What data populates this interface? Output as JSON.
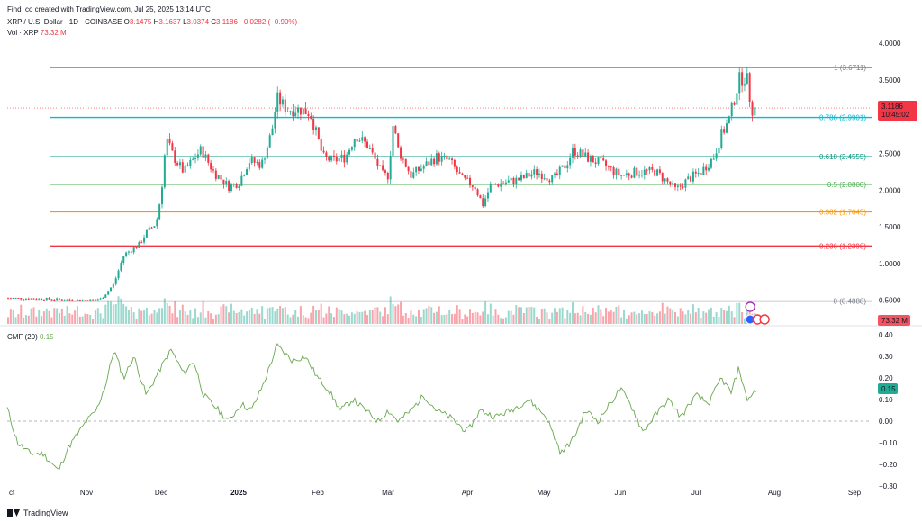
{
  "header": {
    "created_by": "Find_co created with TradingView.com, Jul 25, 2025 13:14 UTC",
    "symbol": "XRP / U.S. Dollar · 1D · COINBASE",
    "o_label": "O",
    "o_value": "3.1475",
    "h_label": "H",
    "h_value": "3.1637",
    "l_label": "L",
    "l_value": "3.0374",
    "c_label": "C",
    "c_value": "3.1186",
    "change": "−0.0282 (−0.90%)",
    "volume_label": "Vol · XRP",
    "volume_value": "73.32 M"
  },
  "indicator": {
    "label": "CMF (20)",
    "value": "0.15"
  },
  "footer": {
    "brand": "TradingView"
  },
  "colors": {
    "up": "#22ab94",
    "down": "#f23645",
    "cmf": "#6aa84f"
  },
  "chart_data": [
    {
      "type": "candlestick",
      "series_name": "XRP / U.S. Dollar",
      "y_ticks": [
        "4.0000",
        "3.5000",
        "3.0000",
        "2.5000",
        "2.0000",
        "1.5000",
        "1.0000",
        "0.5000"
      ],
      "ylim": [
        0.3,
        4.1
      ],
      "x_ticks": [
        "ct",
        "Nov",
        "Dec",
        "2025",
        "Feb",
        "Mar",
        "Apr",
        "May",
        "Jun",
        "Jul",
        "Aug",
        "Sep"
      ],
      "last_price": "3.1186",
      "countdown": "10:45:02",
      "fib_levels": [
        {
          "label": "1 (3.6711)",
          "value": 3.6711,
          "color": "#787b86"
        },
        {
          "label": "0.786 (2.9901)",
          "value": 2.9901,
          "color": "#00bcd4"
        },
        {
          "label": "0.618 (2.4555)",
          "value": 2.4555,
          "color": "#089981"
        },
        {
          "label": "0.5 (2.0800)",
          "value": 2.08,
          "color": "#4caf50"
        },
        {
          "label": "0.382 (1.7045)",
          "value": 1.7045,
          "color": "#ff9800"
        },
        {
          "label": "0.236 (1.2398)",
          "value": 1.2398,
          "color": "#f23645"
        },
        {
          "label": "0 (0.4888)",
          "value": 0.4888,
          "color": "#787b86"
        }
      ],
      "anchors": [
        [
          "Oct",
          0.53
        ],
        [
          "Oct 15",
          0.52
        ],
        [
          "Nov 1",
          0.5
        ],
        [
          "Nov 7",
          0.52
        ],
        [
          "Nov 12",
          0.72
        ],
        [
          "Nov 16",
          1.12
        ],
        [
          "Nov 22",
          1.25
        ],
        [
          "Nov 25",
          1.42
        ],
        [
          "Nov 29",
          1.55
        ],
        [
          "Dec 1",
          1.95
        ],
        [
          "Dec 3",
          2.7
        ],
        [
          "Dec 6",
          2.45
        ],
        [
          "Dec 10",
          2.25
        ],
        [
          "Dec 17",
          2.55
        ],
        [
          "Dec 22",
          2.25
        ],
        [
          "Dec 28",
          2.05
        ],
        [
          "Jan 1",
          2.1
        ],
        [
          "Jan 5",
          2.4
        ],
        [
          "Jan 10",
          2.35
        ],
        [
          "Jan 14",
          2.8
        ],
        [
          "Jan 16",
          3.25
        ],
        [
          "Jan 20",
          3.1
        ],
        [
          "Jan 25",
          3.1
        ],
        [
          "Jan 29",
          3.05
        ],
        [
          "Feb 1",
          2.7
        ],
        [
          "Feb 3",
          2.45
        ],
        [
          "Feb 7",
          2.4
        ],
        [
          "Feb 12",
          2.45
        ],
        [
          "Feb 16",
          2.75
        ],
        [
          "Feb 21",
          2.6
        ],
        [
          "Feb 27",
          2.2
        ],
        [
          "Mar 1",
          2.2
        ],
        [
          "Mar 3",
          2.9
        ],
        [
          "Mar 5",
          2.55
        ],
        [
          "Mar 10",
          2.2
        ],
        [
          "Mar 14",
          2.3
        ],
        [
          "Mar 20",
          2.45
        ],
        [
          "Mar 25",
          2.4
        ],
        [
          "Mar 30",
          2.15
        ],
        [
          "Apr 4",
          2.05
        ],
        [
          "Apr 7",
          1.8
        ],
        [
          "Apr 10",
          2.05
        ],
        [
          "Apr 15",
          2.1
        ],
        [
          "Apr 22",
          2.15
        ],
        [
          "Apr 28",
          2.25
        ],
        [
          "May 5",
          2.15
        ],
        [
          "May 10",
          2.35
        ],
        [
          "May 13",
          2.55
        ],
        [
          "May 18",
          2.45
        ],
        [
          "May 25",
          2.35
        ],
        [
          "Jun 1",
          2.2
        ],
        [
          "Jun 8",
          2.25
        ],
        [
          "Jun 15",
          2.25
        ],
        [
          "Jun 20",
          2.1
        ],
        [
          "Jun 23",
          2.0
        ],
        [
          "Jun 28",
          2.15
        ],
        [
          "Jul 3",
          2.25
        ],
        [
          "Jul 8",
          2.45
        ],
        [
          "Jul 11",
          2.75
        ],
        [
          "Jul 14",
          2.95
        ],
        [
          "Jul 18",
          3.5
        ],
        [
          "Jul 21",
          3.55
        ],
        [
          "Jul 23",
          3.1
        ],
        [
          "Jul 25",
          3.12
        ]
      ],
      "volume": {
        "label": "Vol · XRP",
        "last": "73.32 M"
      }
    },
    {
      "type": "line",
      "series_name": "CMF (20)",
      "y_ticks": [
        "0.40",
        "0.30",
        "0.20",
        "0.10",
        "0.00",
        "−0.10",
        "−0.20",
        "−0.30"
      ],
      "ylim": [
        -0.3,
        0.4
      ],
      "last_value": "0.15",
      "anchors": [
        [
          "Oct",
          0.06
        ],
        [
          "Oct 5",
          -0.1
        ],
        [
          "Oct 10",
          -0.15
        ],
        [
          "Oct 15",
          -0.15
        ],
        [
          "Oct 21",
          -0.23
        ],
        [
          "Oct 25",
          -0.12
        ],
        [
          "Nov 1",
          0.0
        ],
        [
          "Nov 5",
          0.05
        ],
        [
          "Nov 9",
          0.18
        ],
        [
          "Nov 12",
          0.33
        ],
        [
          "Nov 16",
          0.2
        ],
        [
          "Nov 20",
          0.3
        ],
        [
          "Nov 25",
          0.12
        ],
        [
          "Dec 1",
          0.25
        ],
        [
          "Dec 5",
          0.33
        ],
        [
          "Dec 10",
          0.22
        ],
        [
          "Dec 14",
          0.28
        ],
        [
          "Dec 18",
          0.12
        ],
        [
          "Dec 24",
          0.05
        ],
        [
          "Dec 28",
          0.0
        ],
        [
          "Jan 2",
          0.08
        ],
        [
          "Jan 6",
          0.05
        ],
        [
          "Jan 11",
          0.18
        ],
        [
          "Jan 16",
          0.35
        ],
        [
          "Jan 22",
          0.28
        ],
        [
          "Jan 27",
          0.3
        ],
        [
          "Feb 1",
          0.2
        ],
        [
          "Feb 5",
          0.15
        ],
        [
          "Feb 10",
          0.05
        ],
        [
          "Feb 15",
          0.1
        ],
        [
          "Feb 20",
          0.05
        ],
        [
          "Feb 25",
          0.0
        ],
        [
          "Mar 1",
          0.05
        ],
        [
          "Mar 5",
          0.0
        ],
        [
          "Mar 10",
          0.05
        ],
        [
          "Mar 15",
          0.12
        ],
        [
          "Mar 20",
          0.05
        ],
        [
          "Mar 25",
          0.02
        ],
        [
          "Apr 1",
          -0.05
        ],
        [
          "Apr 6",
          0.05
        ],
        [
          "Apr 12",
          0.02
        ],
        [
          "Apr 18",
          0.05
        ],
        [
          "Apr 25",
          0.1
        ],
        [
          "May 2",
          0.02
        ],
        [
          "May 8",
          -0.15
        ],
        [
          "May 13",
          -0.08
        ],
        [
          "May 18",
          0.05
        ],
        [
          "May 23",
          0.0
        ],
        [
          "Jun 1",
          0.15
        ],
        [
          "Jun 5",
          0.08
        ],
        [
          "Jun 10",
          -0.05
        ],
        [
          "Jun 15",
          0.03
        ],
        [
          "Jun 20",
          0.1
        ],
        [
          "Jun 25",
          0.02
        ],
        [
          "Jul 1",
          0.12
        ],
        [
          "Jul 6",
          0.08
        ],
        [
          "Jul 11",
          0.2
        ],
        [
          "Jul 15",
          0.13
        ],
        [
          "Jul 18",
          0.25
        ],
        [
          "Jul 21",
          0.1
        ],
        [
          "Jul 23",
          0.12
        ],
        [
          "Jul 25",
          0.15
        ]
      ]
    }
  ]
}
